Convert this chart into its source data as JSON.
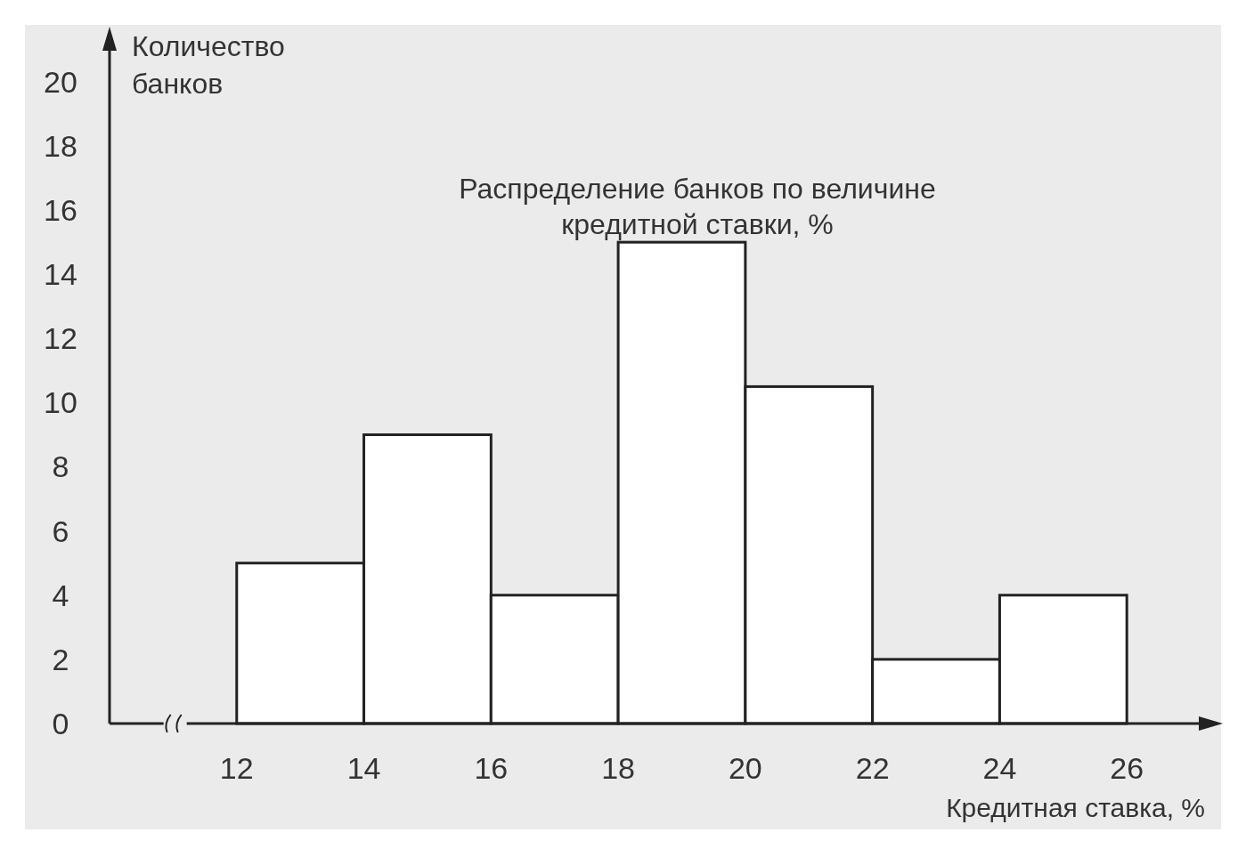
{
  "chart_data": {
    "type": "histogram",
    "title": "Распределение банков по величине\nкредитной ставки, %",
    "xlabel": "Кредитная ставка, %",
    "ylabel": "Количество\nбанков",
    "bins": [
      12,
      14,
      16,
      18,
      20,
      22,
      24,
      26
    ],
    "values": [
      5,
      9,
      4,
      15,
      10.5,
      2,
      4
    ],
    "color": "#ffffff",
    "xlim": [
      10,
      27.3
    ],
    "xticks": [
      12,
      14,
      16,
      18,
      20,
      22,
      24,
      26
    ],
    "ylim": [
      0,
      21.3
    ],
    "yticks": [
      0,
      2,
      4,
      6,
      8,
      10,
      12,
      14,
      16,
      18,
      20
    ],
    "grid": false
  }
}
